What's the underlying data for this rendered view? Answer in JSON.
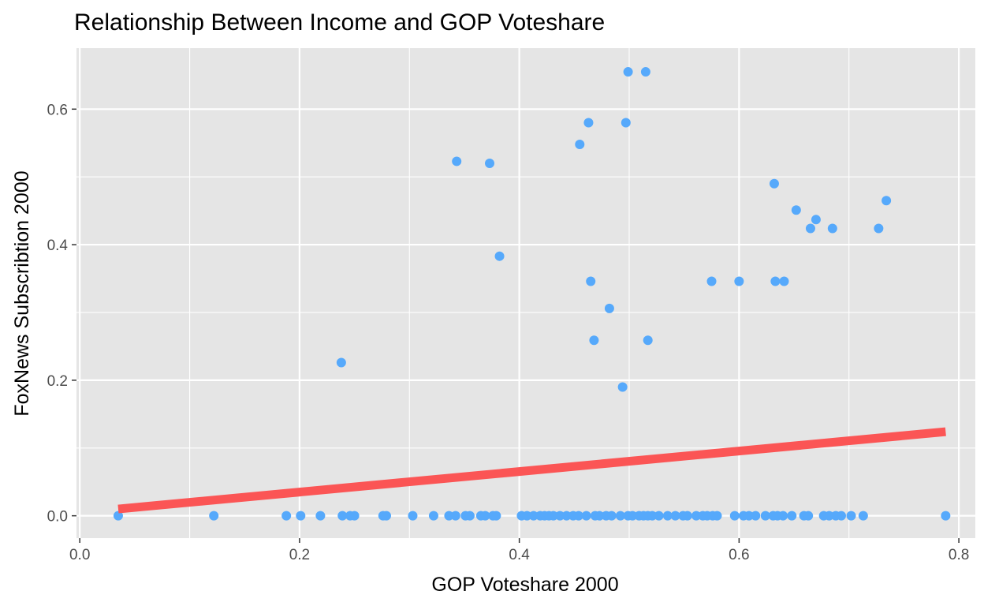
{
  "chart_data": {
    "type": "scatter",
    "title": "Relationship Between Income and GOP Voteshare",
    "xlabel": "GOP Voteshare 2000",
    "ylabel": "FoxNews Subscribtion 2000",
    "xlim": [
      -0.003,
      0.815
    ],
    "ylim": [
      -0.033,
      0.69
    ],
    "x_ticks": [
      0.0,
      0.2,
      0.4,
      0.6,
      0.8
    ],
    "x_tick_labels": [
      "0.0",
      "0.2",
      "0.4",
      "0.6",
      "0.8"
    ],
    "y_ticks": [
      0.0,
      0.2,
      0.4,
      0.6
    ],
    "y_tick_labels": [
      "0.0",
      "0.2",
      "0.4",
      "0.6"
    ],
    "grid": true,
    "colors": {
      "panel_bg": "#e5e5e5",
      "grid": "#ffffff",
      "points": "#56a9fb",
      "fit_line": "#fb5555"
    },
    "series": [
      {
        "points": [
          [
            0.499,
            0.655
          ],
          [
            0.515,
            0.655
          ],
          [
            0.463,
            0.58
          ],
          [
            0.497,
            0.58
          ],
          [
            0.455,
            0.548
          ],
          [
            0.343,
            0.523
          ],
          [
            0.373,
            0.52
          ],
          [
            0.632,
            0.49
          ],
          [
            0.734,
            0.465
          ],
          [
            0.652,
            0.451
          ],
          [
            0.67,
            0.437
          ],
          [
            0.665,
            0.424
          ],
          [
            0.685,
            0.424
          ],
          [
            0.727,
            0.424
          ],
          [
            0.382,
            0.383
          ],
          [
            0.465,
            0.346
          ],
          [
            0.575,
            0.346
          ],
          [
            0.6,
            0.346
          ],
          [
            0.633,
            0.346
          ],
          [
            0.641,
            0.346
          ],
          [
            0.482,
            0.306
          ],
          [
            0.468,
            0.259
          ],
          [
            0.517,
            0.259
          ],
          [
            0.238,
            0.226
          ],
          [
            0.494,
            0.19
          ],
          [
            0.035,
            0.0
          ],
          [
            0.122,
            0.0
          ],
          [
            0.188,
            0.0
          ],
          [
            0.201,
            0.0
          ],
          [
            0.219,
            0.0
          ],
          [
            0.239,
            0.0
          ],
          [
            0.246,
            0.0
          ],
          [
            0.25,
            0.0
          ],
          [
            0.276,
            0.0
          ],
          [
            0.279,
            0.0
          ],
          [
            0.303,
            0.0
          ],
          [
            0.322,
            0.0
          ],
          [
            0.336,
            0.0
          ],
          [
            0.342,
            0.0
          ],
          [
            0.351,
            0.0
          ],
          [
            0.355,
            0.0
          ],
          [
            0.365,
            0.0
          ],
          [
            0.369,
            0.0
          ],
          [
            0.376,
            0.0
          ],
          [
            0.379,
            0.0
          ],
          [
            0.402,
            0.0
          ],
          [
            0.407,
            0.0
          ],
          [
            0.413,
            0.0
          ],
          [
            0.419,
            0.0
          ],
          [
            0.423,
            0.0
          ],
          [
            0.427,
            0.0
          ],
          [
            0.431,
            0.0
          ],
          [
            0.437,
            0.0
          ],
          [
            0.443,
            0.0
          ],
          [
            0.449,
            0.0
          ],
          [
            0.454,
            0.0
          ],
          [
            0.461,
            0.0
          ],
          [
            0.469,
            0.0
          ],
          [
            0.473,
            0.0
          ],
          [
            0.479,
            0.0
          ],
          [
            0.484,
            0.0
          ],
          [
            0.492,
            0.0
          ],
          [
            0.499,
            0.0
          ],
          [
            0.503,
            0.0
          ],
          [
            0.509,
            0.0
          ],
          [
            0.513,
            0.0
          ],
          [
            0.517,
            0.0
          ],
          [
            0.521,
            0.0
          ],
          [
            0.527,
            0.0
          ],
          [
            0.535,
            0.0
          ],
          [
            0.542,
            0.0
          ],
          [
            0.549,
            0.0
          ],
          [
            0.553,
            0.0
          ],
          [
            0.561,
            0.0
          ],
          [
            0.567,
            0.0
          ],
          [
            0.571,
            0.0
          ],
          [
            0.576,
            0.0
          ],
          [
            0.58,
            0.0
          ],
          [
            0.596,
            0.0
          ],
          [
            0.604,
            0.0
          ],
          [
            0.609,
            0.0
          ],
          [
            0.615,
            0.0
          ],
          [
            0.624,
            0.0
          ],
          [
            0.631,
            0.0
          ],
          [
            0.635,
            0.0
          ],
          [
            0.64,
            0.0
          ],
          [
            0.648,
            0.0
          ],
          [
            0.659,
            0.0
          ],
          [
            0.663,
            0.0
          ],
          [
            0.677,
            0.0
          ],
          [
            0.682,
            0.0
          ],
          [
            0.688,
            0.0
          ],
          [
            0.693,
            0.0
          ],
          [
            0.702,
            0.0
          ],
          [
            0.713,
            0.0
          ],
          [
            0.788,
            0.0
          ]
        ]
      }
    ],
    "fit_line": {
      "x": [
        0.035,
        0.788
      ],
      "y": [
        0.01,
        0.124
      ]
    }
  }
}
